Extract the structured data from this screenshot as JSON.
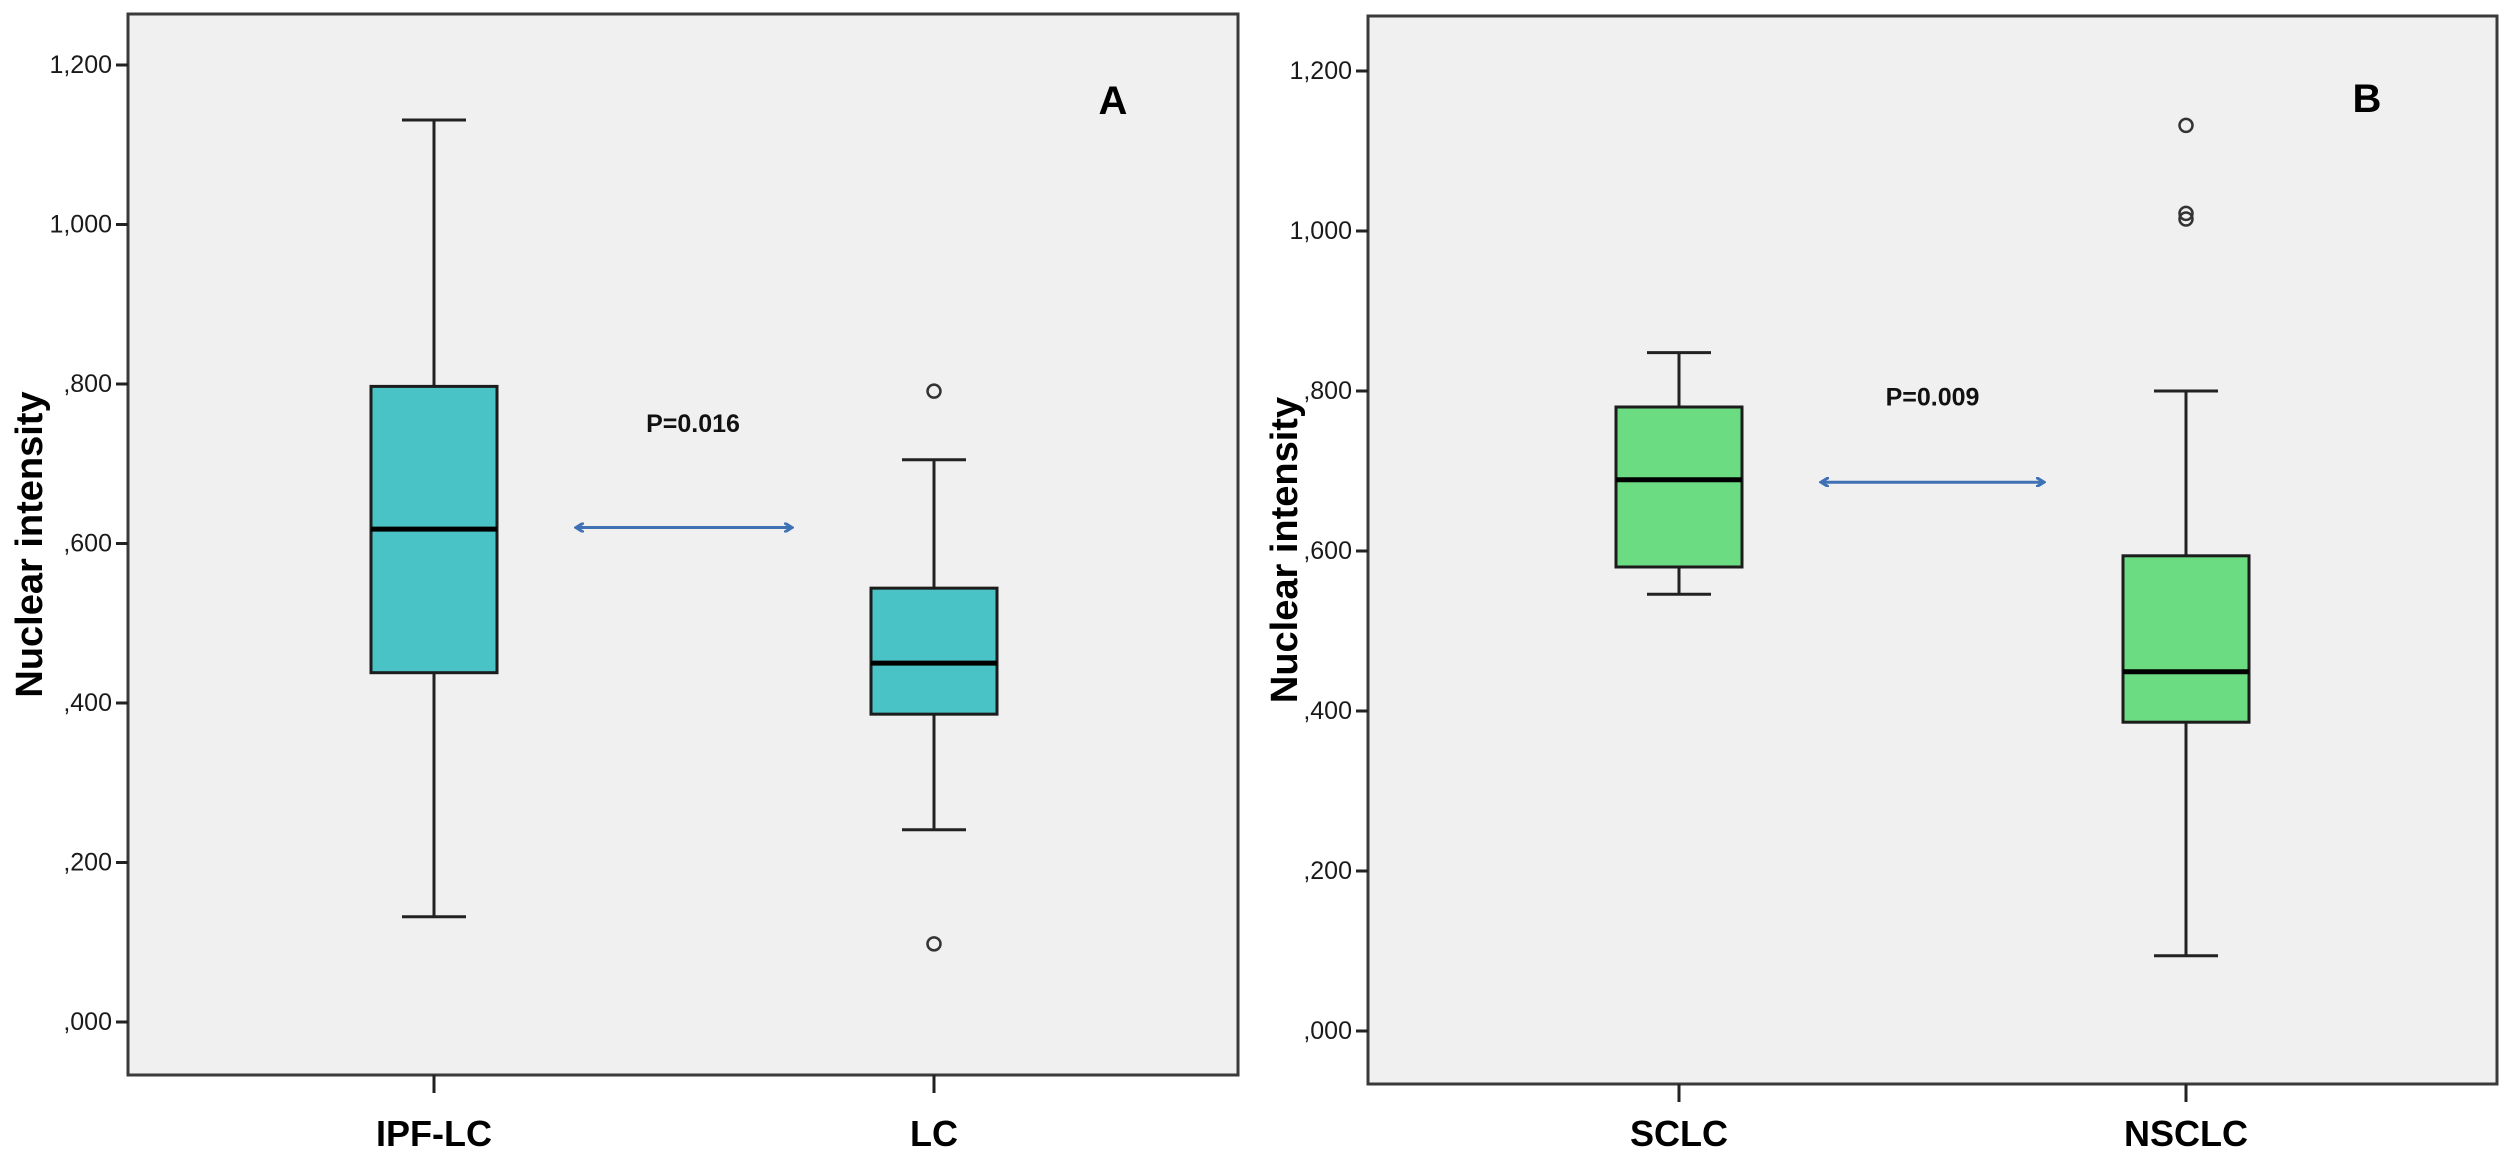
{
  "chart_data": [
    {
      "type": "box",
      "panel_label": "A",
      "title": "",
      "xlabel": "",
      "ylabel": "Nuclear intensity",
      "ylim": [
        -0.1,
        1.26
      ],
      "yticks": [
        0.0,
        0.2,
        0.4,
        0.6,
        0.8,
        1.0,
        1.2
      ],
      "ytick_labels": [
        ",000",
        ",200",
        ",400",
        ",600",
        ",800",
        "1,000",
        "1,200"
      ],
      "grid": false,
      "categories": [
        "IPF-LC",
        "LC"
      ],
      "series": [
        {
          "name": "IPF-LC",
          "min": 0.132,
          "q1": 0.438,
          "median": 0.618,
          "q3": 0.797,
          "max": 1.131,
          "outliers": []
        },
        {
          "name": "LC",
          "min": 0.241,
          "q1": 0.386,
          "median": 0.45,
          "q3": 0.544,
          "max": 0.705,
          "outliers": [
            0.791,
            0.098
          ]
        }
      ],
      "fill_color": "#4ac3c6",
      "annotation": {
        "text": "P=0.016",
        "between": [
          "IPF-LC",
          "LC"
        ],
        "arrow_y": 0.62,
        "text_y": 0.75
      },
      "arrow_color": "#3f72b5"
    },
    {
      "type": "box",
      "panel_label": "B",
      "title": "",
      "xlabel": "",
      "ylabel": "Nuclear intensity",
      "ylim": [
        -0.066,
        1.29
      ],
      "yticks": [
        0.0,
        0.2,
        0.4,
        0.6,
        0.8,
        1.0,
        1.2
      ],
      "ytick_labels": [
        ",000",
        ",200",
        ",400",
        ",600",
        ",800",
        "1,000",
        "1,200"
      ],
      "grid": false,
      "categories": [
        "SCLC",
        "NSCLC"
      ],
      "series": [
        {
          "name": "SCLC",
          "min": 0.546,
          "q1": 0.58,
          "median": 0.689,
          "q3": 0.78,
          "max": 0.848,
          "outliers": []
        },
        {
          "name": "NSCLC",
          "min": 0.094,
          "q1": 0.386,
          "median": 0.449,
          "q3": 0.594,
          "max": 0.8,
          "outliers": [
            1.132,
            1.022,
            1.015
          ]
        }
      ],
      "fill_color": "#6cdc82",
      "annotation": {
        "text": "P=0.009",
        "between": [
          "SCLC",
          "NSCLC"
        ],
        "arrow_y": 0.686,
        "text_y": 0.792
      },
      "arrow_color": "#3f72b5"
    }
  ],
  "colors": {
    "plot_background": "#f0f0f0",
    "frame": "#3a3a3a",
    "box_stroke": "#1c1c1c",
    "median": "#000000",
    "arrow": "#3f72b5"
  }
}
